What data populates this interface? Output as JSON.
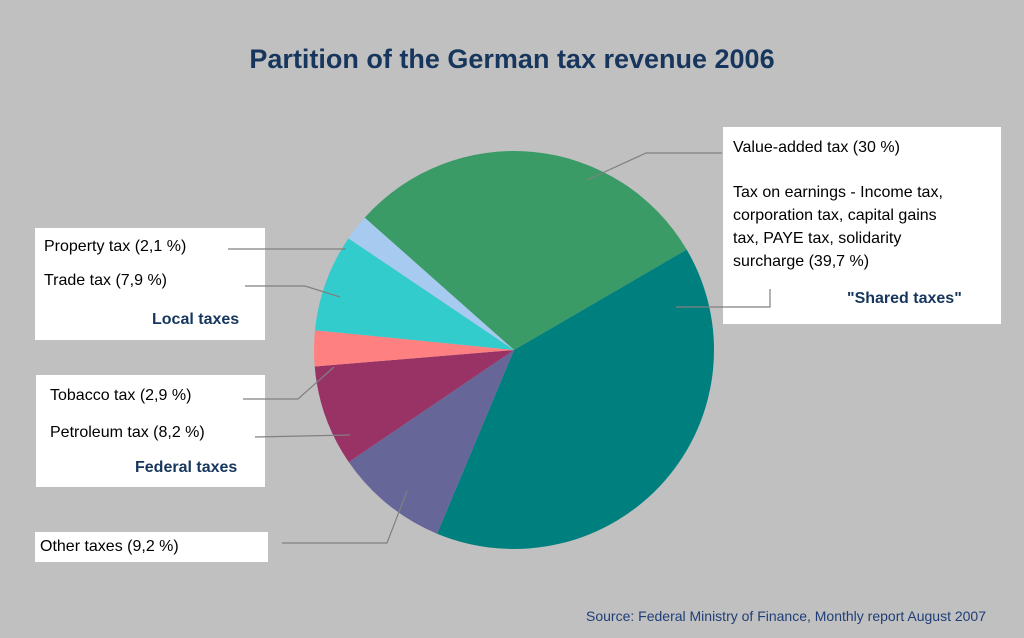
{
  "chart_data": {
    "type": "pie",
    "title": "Partition of the German tax revenue 2006",
    "slices": [
      {
        "key": "vat",
        "name": "Value-added tax",
        "label": "Value-added tax (30 %)",
        "value": 30.0,
        "color": "#3a9b67"
      },
      {
        "key": "earnings",
        "name": "Tax on earnings",
        "label": "Tax on earnings - Income tax, corporation tax, capital gains tax, PAYE tax, solidarity surcharge (39,7 %)",
        "value": 39.7,
        "color": "#007f7f"
      },
      {
        "key": "other",
        "name": "Other taxes",
        "label": "Other taxes (9,2 %)",
        "value": 9.2,
        "color": "#666699"
      },
      {
        "key": "petroleum",
        "name": "Petroleum tax",
        "label": "Petroleum tax (8,2 %)",
        "value": 8.2,
        "color": "#993366"
      },
      {
        "key": "tobacco",
        "name": "Tobacco tax",
        "label": "Tobacco tax (2,9 %)",
        "value": 2.9,
        "color": "#ff8080"
      },
      {
        "key": "trade",
        "name": "Trade tax",
        "label": "Trade tax (7,9 %)",
        "value": 7.9,
        "color": "#33cccc"
      },
      {
        "key": "property",
        "name": "Property tax",
        "label": "Property tax (2,1 %)",
        "value": 2.1,
        "color": "#a6caf0"
      }
    ],
    "groups": {
      "local": "Local taxes",
      "federal": "Federal taxes",
      "shared": "\"Shared taxes\""
    },
    "earnings_lines": [
      "Tax on earnings - Income tax,",
      "corporation tax, capital gains",
      "tax, PAYE tax, solidarity",
      "surcharge (39,7 %)"
    ],
    "source": "Source: Federal Ministry of Finance, Monthly report August 2007"
  }
}
